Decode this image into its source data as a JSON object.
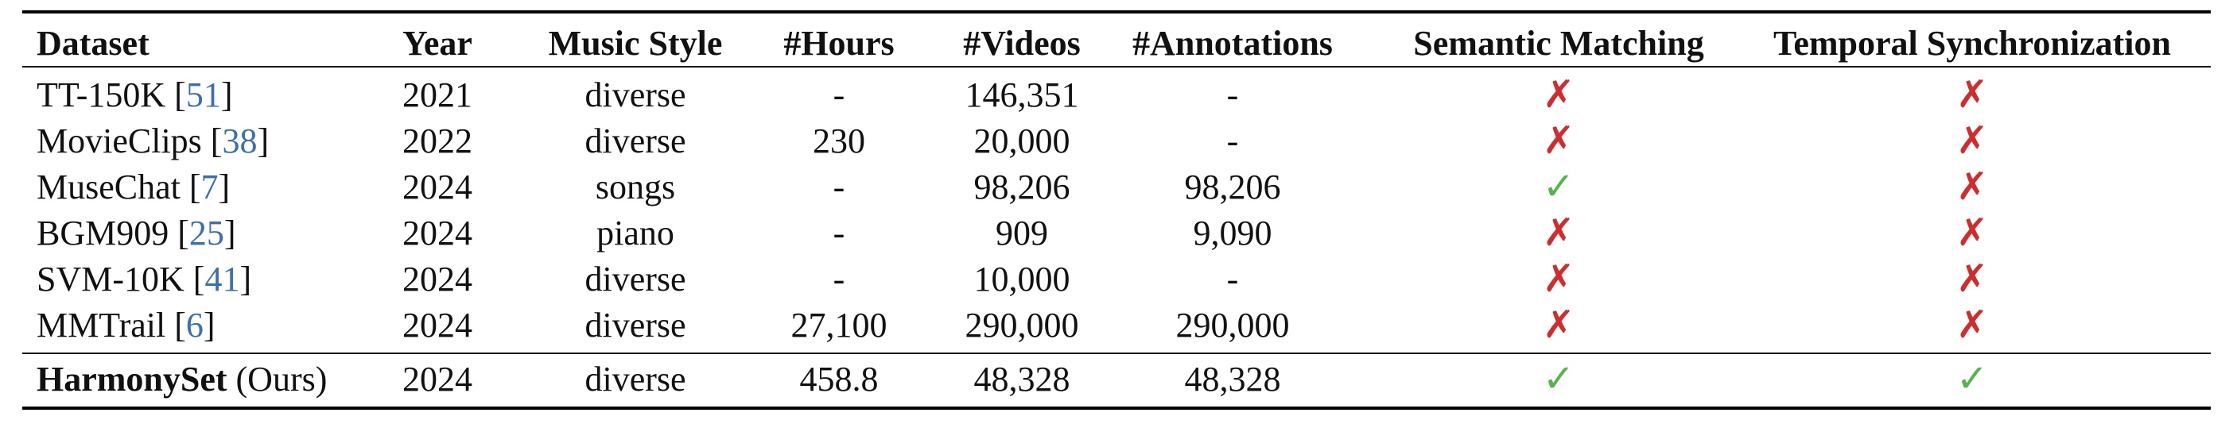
{
  "headers": [
    "Dataset",
    "Year",
    "Music Style",
    "#Hours",
    "#Videos",
    "#Annotations",
    "Semantic Matching",
    "Temporal Synchronization"
  ],
  "rows": [
    {
      "name": "TT-150K",
      "ref": "51",
      "year": "2021",
      "style": "diverse",
      "hours": "-",
      "videos": "146,351",
      "annotations": "-",
      "semantic": "✗",
      "temporal": "✗"
    },
    {
      "name": "MovieClips",
      "ref": "38",
      "year": "2022",
      "style": "diverse",
      "hours": "230",
      "videos": "20,000",
      "annotations": "-",
      "semantic": "✗",
      "temporal": "✗"
    },
    {
      "name": "MuseChat",
      "ref": "7",
      "year": "2024",
      "style": "songs",
      "hours": "-",
      "videos": "98,206",
      "annotations": "98,206",
      "semantic": "✓",
      "temporal": "✗"
    },
    {
      "name": "BGM909",
      "ref": "25",
      "year": "2024",
      "style": "piano",
      "hours": "-",
      "videos": "909",
      "annotations": "9,090",
      "semantic": "✗",
      "temporal": "✗"
    },
    {
      "name": "SVM-10K",
      "ref": "41",
      "year": "2024",
      "style": "diverse",
      "hours": "-",
      "videos": "10,000",
      "annotations": "-",
      "semantic": "✗",
      "temporal": "✗"
    },
    {
      "name": "MMTrail",
      "ref": "6",
      "year": "2024",
      "style": "diverse",
      "hours": "27,100",
      "videos": "290,000",
      "annotations": "290,000",
      "semantic": "✗",
      "temporal": "✗"
    }
  ],
  "ours": {
    "name": "HarmonySet",
    "suffix": "(Ours)",
    "year": "2024",
    "style": "diverse",
    "hours": "458.8",
    "videos": "48,328",
    "annotations": "48,328",
    "semantic": "✓",
    "temporal": "✓"
  },
  "colors": {
    "check": "#4fb847",
    "cross": "#d22b2b",
    "citation": "#3a6fb0"
  }
}
